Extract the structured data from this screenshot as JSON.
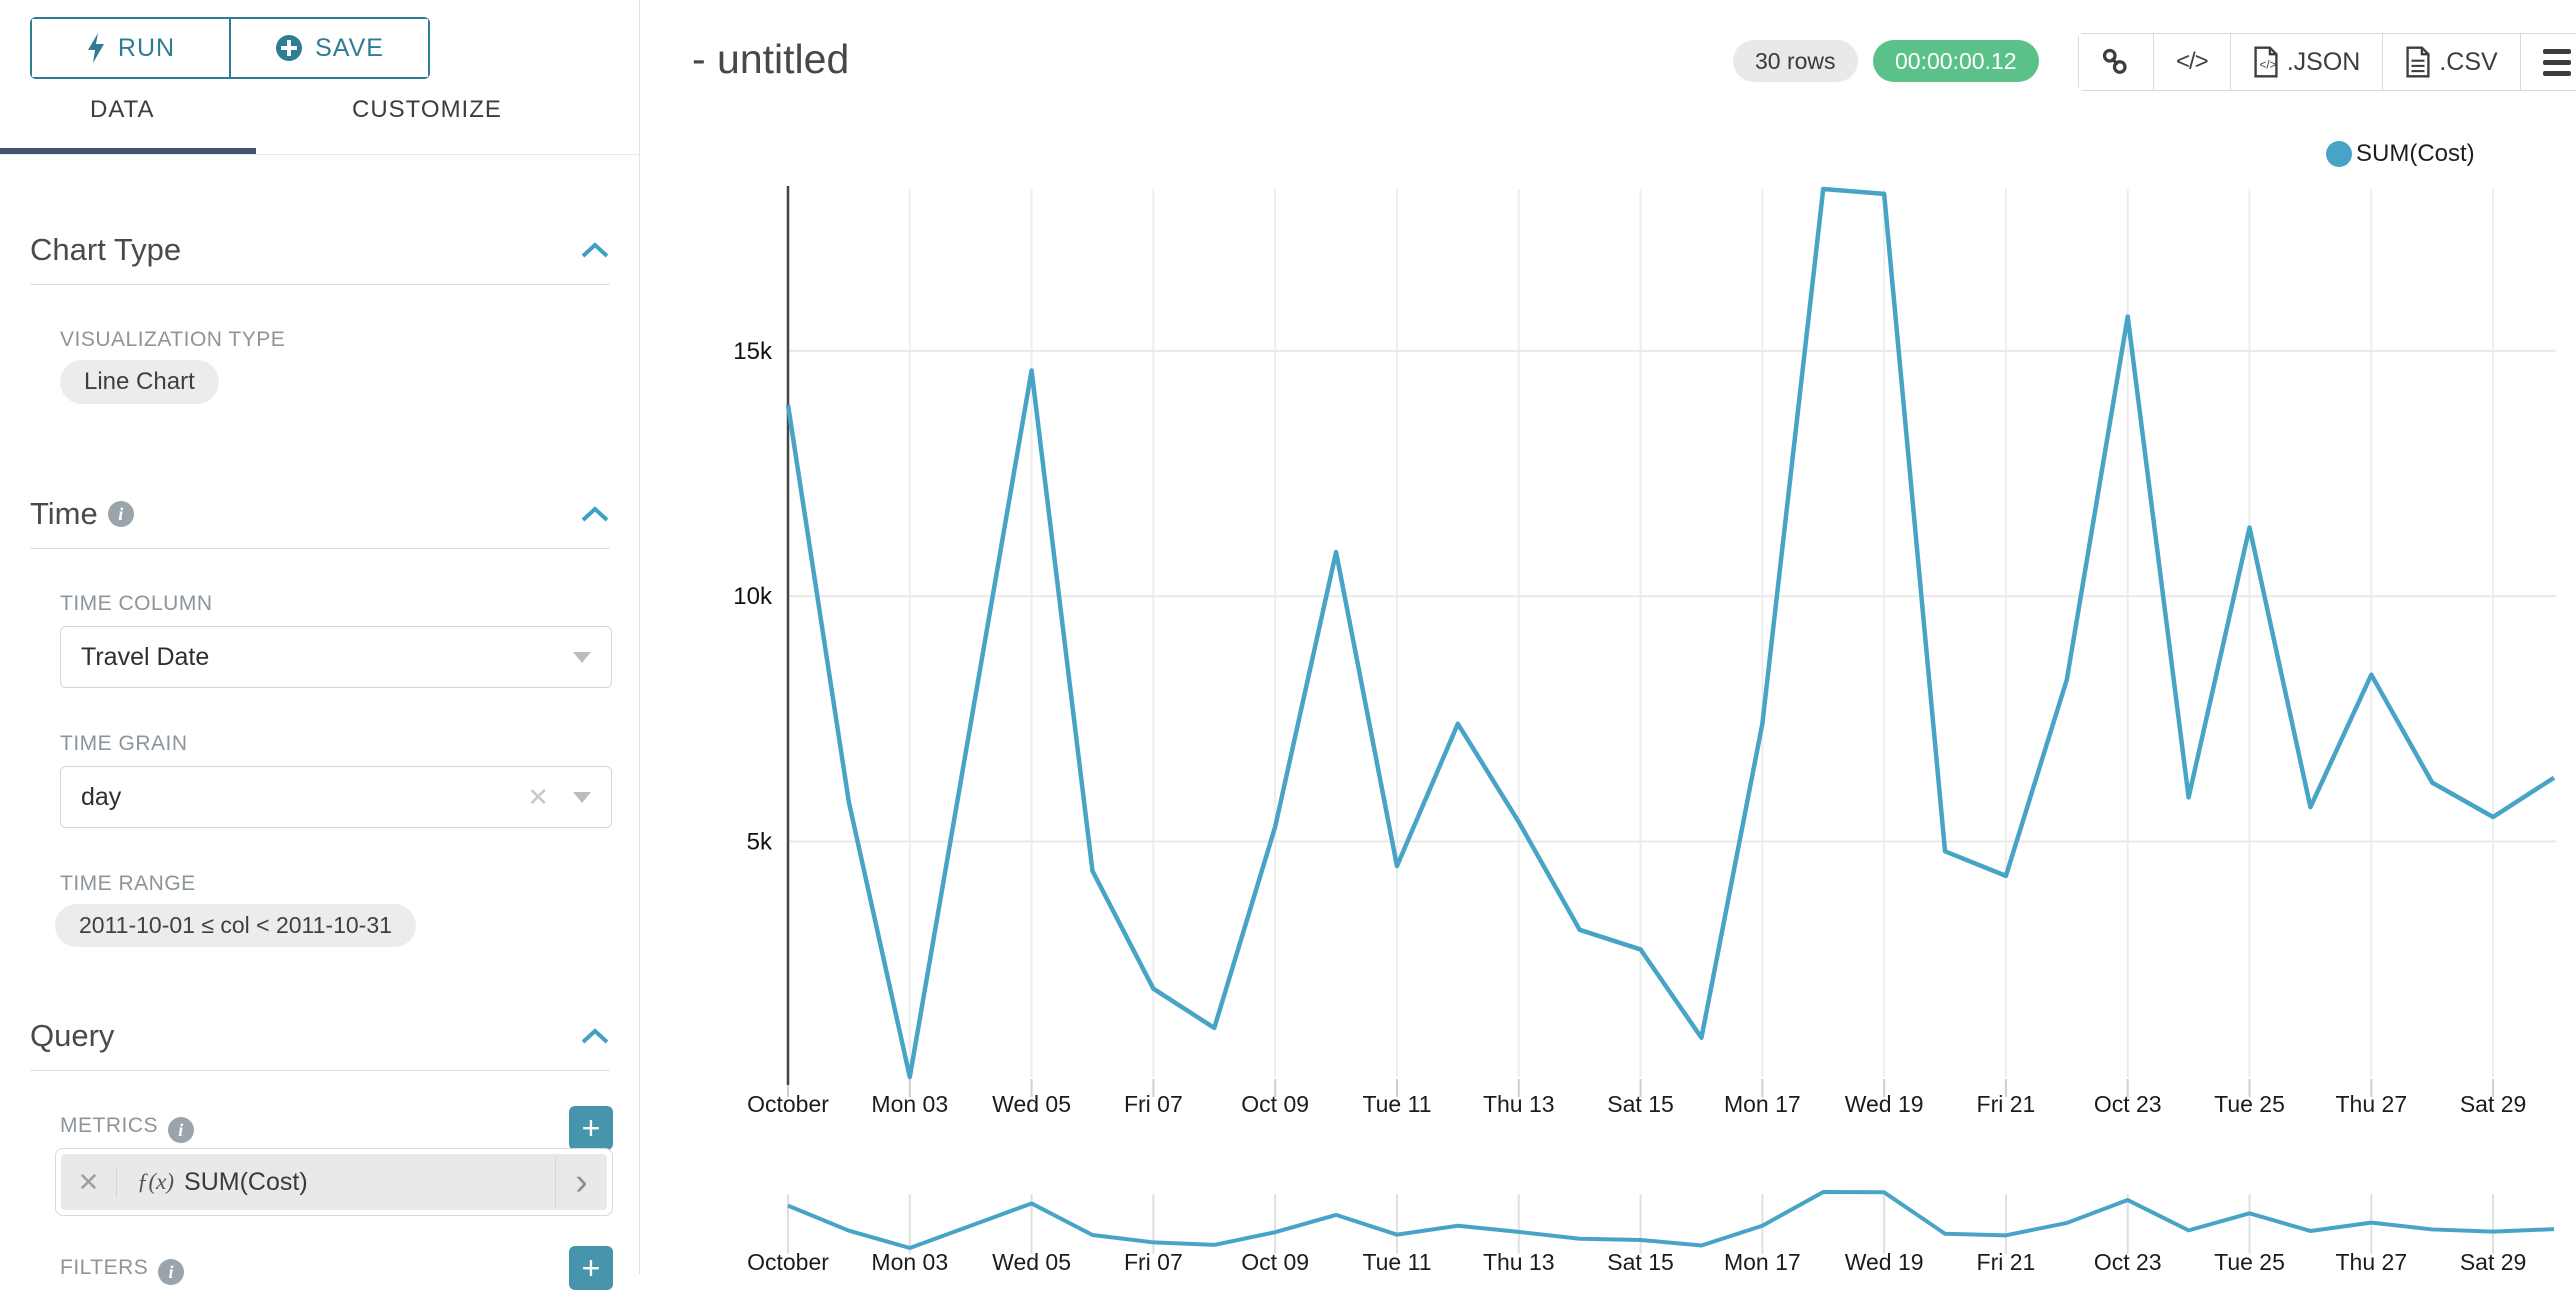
{
  "colors": {
    "accent_teal": "#2e7d95",
    "plus_button_teal": "#4795ac",
    "series_line": "#48a4c6",
    "timer_green": "#5ac189",
    "tab_underline_navy": "#44536f"
  },
  "sidebar": {
    "run_label": "RUN",
    "save_label": "SAVE",
    "tabs": [
      {
        "label": "DATA",
        "active": true
      },
      {
        "label": "CUSTOMIZE",
        "active": false
      }
    ],
    "chart_type_section": {
      "title": "Chart Type",
      "viz_type_label": "VISUALIZATION TYPE",
      "viz_type_value": "Line Chart"
    },
    "time_section": {
      "title": "Time",
      "time_column_label": "TIME COLUMN",
      "time_column_value": "Travel Date",
      "time_grain_label": "TIME GRAIN",
      "time_grain_value": "day",
      "time_range_label": "TIME RANGE",
      "time_range_value": "2011-10-01 ≤ col < 2011-10-31"
    },
    "query_section": {
      "title": "Query",
      "metrics_label": "METRICS",
      "metric_fx": "ƒ(x)",
      "metric_value": "SUM(Cost)",
      "filters_label": "FILTERS"
    }
  },
  "header": {
    "title": "- untitled",
    "rows_badge": "30 rows",
    "timer": "00:00:00.12",
    "export_json_label": ".JSON",
    "export_csv_label": ".CSV",
    "code_icon_glyph": "</>"
  },
  "chart_data": {
    "type": "line",
    "title": "- untitled",
    "legend": [
      "SUM(Cost)"
    ],
    "legend_position": "top-right",
    "grid": true,
    "xlabel": "",
    "ylabel": "",
    "x_tick_labels": [
      "October",
      "Mon 03",
      "Wed 05",
      "Fri 07",
      "Oct 09",
      "Tue 11",
      "Thu 13",
      "Sat 15",
      "Mon 17",
      "Wed 19",
      "Fri 21",
      "Oct 23",
      "Tue 25",
      "Thu 27",
      "Sat 29"
    ],
    "y_tick_labels": [
      "5k",
      "10k",
      "15k"
    ],
    "y_ticks": [
      5000,
      10000,
      15000
    ],
    "ylim": [
      200,
      18300
    ],
    "x": [
      "2011-10-01",
      "2011-10-02",
      "2011-10-03",
      "2011-10-04",
      "2011-10-05",
      "2011-10-06",
      "2011-10-07",
      "2011-10-08",
      "2011-10-09",
      "2011-10-10",
      "2011-10-11",
      "2011-10-12",
      "2011-10-13",
      "2011-10-14",
      "2011-10-15",
      "2011-10-16",
      "2011-10-17",
      "2011-10-18",
      "2011-10-19",
      "2011-10-20",
      "2011-10-21",
      "2011-10-22",
      "2011-10-23",
      "2011-10-24",
      "2011-10-25",
      "2011-10-26",
      "2011-10-27",
      "2011-10-28",
      "2011-10-29",
      "2011-10-30"
    ],
    "series": [
      {
        "name": "SUM(Cost)",
        "values": [
          13900,
          5800,
          200,
          7400,
          14600,
          4400,
          2000,
          1200,
          5300,
          10900,
          4500,
          7400,
          5400,
          3200,
          2800,
          1000,
          7400,
          18300,
          18200,
          4800,
          4300,
          8300,
          15700,
          5900,
          11400,
          5700,
          8400,
          6200,
          5500,
          6300
        ]
      }
    ],
    "has_range_minichart": true
  }
}
